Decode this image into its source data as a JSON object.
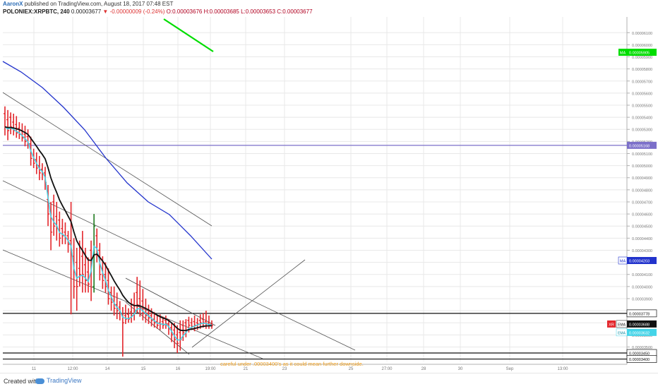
{
  "header": {
    "author": "AaronX",
    "published_text": "published on TradingView.com, August 18, 2017 07:48 EST",
    "symbol": "POLONIEX:XRPBTC, 240",
    "last": "0.00003677",
    "change": "▼ -0.00000009 (-0.24%)",
    "open": "O:0.00003676",
    "high": "H:0.00003685",
    "low": "L:0.00003653",
    "close": "C:0.00003677"
  },
  "footer": {
    "created_with": "Created with",
    "brand": "TradingView"
  },
  "colors": {
    "up": "#1f7a1f",
    "down": "#e3262b",
    "ma_green": "#00dd00",
    "ma_blue": "#2233cc",
    "ema_black": "#111111",
    "ema_cyan": "#44d4e8",
    "horizontal_purple": "#7b6fc9",
    "note": "#f0a020",
    "grid": "#e8e8e8"
  },
  "chart_data": {
    "type": "candlestick",
    "y_scale": "price (BTC)",
    "ylim": [
      3.38e-05,
      6.23e-05
    ],
    "y_ticks": [
      "0.00006100",
      "0.00006000",
      "0.00005900",
      "0.00005800",
      "0.00005700",
      "0.00005600",
      "0.00005500",
      "0.00005400",
      "0.00005300",
      "0.00005200",
      "0.00005100",
      "0.00005000",
      "0.00004900",
      "0.00004800",
      "0.00004700",
      "0.00004600",
      "0.00004500",
      "0.00004400",
      "0.00004300",
      "0.00004200",
      "0.00004100",
      "0.00004000",
      "0.00003900",
      "0.00003800",
      "0.00003700",
      "0.00003600",
      "0.00003500",
      "0.00003400"
    ],
    "x_ticks": [
      "11",
      "12:00",
      "14",
      "15",
      "16",
      "19:00",
      "21",
      "23",
      "25",
      "27:00",
      "28",
      "30",
      "Sep",
      "13:00"
    ],
    "grid": true,
    "candles": [
      {
        "o": 5.43e-05,
        "h": 5.49e-05,
        "l": 5.25e-05,
        "c": 5.32e-05,
        "d": "down"
      },
      {
        "o": 5.38e-05,
        "h": 5.46e-05,
        "l": 5.21e-05,
        "c": 5.29e-05,
        "d": "down"
      },
      {
        "o": 5.4e-05,
        "h": 5.44e-05,
        "l": 5.26e-05,
        "c": 5.32e-05,
        "d": "down"
      },
      {
        "o": 5.36e-05,
        "h": 5.43e-05,
        "l": 5.25e-05,
        "c": 5.29e-05,
        "d": "down"
      },
      {
        "o": 5.34e-05,
        "h": 5.41e-05,
        "l": 5.23e-05,
        "c": 5.27e-05,
        "d": "down"
      },
      {
        "o": 5.31e-05,
        "h": 5.36e-05,
        "l": 5.22e-05,
        "c": 5.26e-05,
        "d": "down"
      },
      {
        "o": 5.29e-05,
        "h": 5.35e-05,
        "l": 5.2e-05,
        "c": 5.23e-05,
        "d": "down"
      },
      {
        "o": 5.26e-05,
        "h": 5.33e-05,
        "l": 5.16e-05,
        "c": 5.2e-05,
        "d": "down"
      },
      {
        "o": 5.24e-05,
        "h": 5.3e-05,
        "l": 5.14e-05,
        "c": 5.18e-05,
        "d": "down"
      },
      {
        "o": 5.18e-05,
        "h": 5.24e-05,
        "l": 5e-05,
        "c": 5.06e-05,
        "d": "down"
      },
      {
        "o": 5.08e-05,
        "h": 5.14e-05,
        "l": 4.98e-05,
        "c": 5.02e-05,
        "d": "down"
      },
      {
        "o": 5.05e-05,
        "h": 5.11e-05,
        "l": 4.93e-05,
        "c": 4.98e-05,
        "d": "down"
      },
      {
        "o": 5e-05,
        "h": 5.08e-05,
        "l": 4.88e-05,
        "c": 4.94e-05,
        "d": "down"
      },
      {
        "o": 4.97e-05,
        "h": 5.02e-05,
        "l": 4.88e-05,
        "c": 4.93e-05,
        "d": "down"
      },
      {
        "o": 4.94e-05,
        "h": 4.99e-05,
        "l": 4.8e-05,
        "c": 4.86e-05,
        "d": "down"
      },
      {
        "o": 4.72e-05,
        "h": 4.84e-05,
        "l": 4.5e-05,
        "c": 4.6e-05,
        "d": "down"
      },
      {
        "o": 4.62e-05,
        "h": 4.7e-05,
        "l": 4.3e-05,
        "c": 4.45e-05,
        "d": "down"
      },
      {
        "o": 4.7e-05,
        "h": 4.76e-05,
        "l": 4.42e-05,
        "c": 4.5e-05,
        "d": "down"
      },
      {
        "o": 4.58e-05,
        "h": 4.7e-05,
        "l": 4.38e-05,
        "c": 4.48e-05,
        "d": "down"
      },
      {
        "o": 4.55e-05,
        "h": 4.62e-05,
        "l": 4.33e-05,
        "c": 4.4e-05,
        "d": "down"
      },
      {
        "o": 4.48e-05,
        "h": 4.56e-05,
        "l": 4.35e-05,
        "c": 4.42e-05,
        "d": "down"
      },
      {
        "o": 4.45e-05,
        "h": 4.53e-05,
        "l": 4.35e-05,
        "c": 4.4e-05,
        "d": "down"
      },
      {
        "o": 4.42e-05,
        "h": 4.46e-05,
        "l": 4.28e-05,
        "c": 4.35e-05,
        "d": "down"
      },
      {
        "o": 4.38e-05,
        "h": 4.7e-05,
        "l": 3.77e-05,
        "c": 4.3e-05,
        "d": "down"
      },
      {
        "o": 4.25e-05,
        "h": 4.4e-05,
        "l": 3.9e-05,
        "c": 4e-05,
        "d": "down"
      },
      {
        "o": 4.2e-05,
        "h": 4.32e-05,
        "l": 3.8e-05,
        "c": 4e-05,
        "d": "down"
      },
      {
        "o": 4.15e-05,
        "h": 4.38e-05,
        "l": 4e-05,
        "c": 4.1e-05,
        "d": "down"
      },
      {
        "o": 4.25e-05,
        "h": 4.46e-05,
        "l": 3.95e-05,
        "c": 4.1e-05,
        "d": "down"
      },
      {
        "o": 4.18e-05,
        "h": 4.32e-05,
        "l": 3.95e-05,
        "c": 4.05e-05,
        "d": "down"
      },
      {
        "o": 4.12e-05,
        "h": 4.24e-05,
        "l": 3.95e-05,
        "c": 4.02e-05,
        "d": "down"
      },
      {
        "o": 4.3e-05,
        "h": 4.38e-05,
        "l": 3.88e-05,
        "c": 4.2e-05,
        "d": "down"
      },
      {
        "o": 4e-05,
        "h": 4.6e-05,
        "l": 3.95e-05,
        "c": 4.5e-05,
        "d": "up"
      },
      {
        "o": 4.42e-05,
        "h": 4.48e-05,
        "l": 4.2e-05,
        "c": 4.3e-05,
        "d": "down"
      },
      {
        "o": 4.3e-05,
        "h": 4.36e-05,
        "l": 4.05e-05,
        "c": 4.1e-05,
        "d": "down"
      },
      {
        "o": 4.15e-05,
        "h": 4.25e-05,
        "l": 3.98e-05,
        "c": 4.05e-05,
        "d": "down"
      },
      {
        "o": 4.1e-05,
        "h": 4.2e-05,
        "l": 3.95e-05,
        "c": 4e-05,
        "d": "down"
      },
      {
        "o": 4.05e-05,
        "h": 4.15e-05,
        "l": 3.85e-05,
        "c": 3.9e-05,
        "d": "down"
      },
      {
        "o": 3.95e-05,
        "h": 4e-05,
        "l": 3.8e-05,
        "c": 3.87e-05,
        "d": "down"
      },
      {
        "o": 3.92e-05,
        "h": 4e-05,
        "l": 3.76e-05,
        "c": 3.82e-05,
        "d": "down"
      },
      {
        "o": 3.85e-05,
        "h": 3.95e-05,
        "l": 3.73e-05,
        "c": 3.8e-05,
        "d": "down"
      },
      {
        "o": 3.83e-05,
        "h": 3.88e-05,
        "l": 3.72e-05,
        "c": 3.78e-05,
        "d": "down"
      },
      {
        "o": 3.77e-05,
        "h": 3.83e-05,
        "l": 3.42e-05,
        "c": 3.7e-05,
        "d": "down"
      },
      {
        "o": 3.76e-05,
        "h": 3.85e-05,
        "l": 3.69e-05,
        "c": 3.73e-05,
        "d": "down"
      },
      {
        "o": 3.77e-05,
        "h": 3.82e-05,
        "l": 3.7e-05,
        "c": 3.73e-05,
        "d": "down"
      },
      {
        "o": 3.79e-05,
        "h": 3.9e-05,
        "l": 3.7e-05,
        "c": 3.76e-05,
        "d": "down"
      },
      {
        "o": 3.85e-05,
        "h": 3.95e-05,
        "l": 3.72e-05,
        "c": 3.79e-05,
        "d": "down"
      },
      {
        "o": 3.95e-05,
        "h": 4.08e-05,
        "l": 3.78e-05,
        "c": 3.85e-05,
        "d": "down"
      },
      {
        "o": 3.9e-05,
        "h": 4.05e-05,
        "l": 3.75e-05,
        "c": 3.82e-05,
        "d": "down"
      },
      {
        "o": 3.88e-05,
        "h": 3.98e-05,
        "l": 3.72e-05,
        "c": 3.78e-05,
        "d": "down"
      },
      {
        "o": 3.82e-05,
        "h": 3.9e-05,
        "l": 3.7e-05,
        "c": 3.76e-05,
        "d": "down"
      },
      {
        "o": 3.78e-05,
        "h": 3.85e-05,
        "l": 3.69e-05,
        "c": 3.74e-05,
        "d": "down"
      },
      {
        "o": 3.76e-05,
        "h": 3.82e-05,
        "l": 3.67e-05,
        "c": 3.72e-05,
        "d": "down"
      },
      {
        "o": 3.73e-05,
        "h": 3.79e-05,
        "l": 3.66e-05,
        "c": 3.7e-05,
        "d": "down"
      },
      {
        "o": 3.71e-05,
        "h": 3.76e-05,
        "l": 3.65e-05,
        "c": 3.68e-05,
        "d": "down"
      },
      {
        "o": 3.7e-05,
        "h": 3.77e-05,
        "l": 3.64e-05,
        "c": 3.69e-05,
        "d": "down"
      },
      {
        "o": 3.71e-05,
        "h": 3.75e-05,
        "l": 3.65e-05,
        "c": 3.68e-05,
        "d": "down"
      },
      {
        "o": 3.72e-05,
        "h": 3.76e-05,
        "l": 3.65e-05,
        "c": 3.69e-05,
        "d": "down"
      },
      {
        "o": 3.69e-05,
        "h": 3.73e-05,
        "l": 3.6e-05,
        "c": 3.65e-05,
        "d": "down"
      },
      {
        "o": 3.66e-05,
        "h": 3.7e-05,
        "l": 3.54e-05,
        "c": 3.6e-05,
        "d": "down"
      },
      {
        "o": 3.64e-05,
        "h": 3.7e-05,
        "l": 3.49e-05,
        "c": 3.56e-05,
        "d": "down"
      },
      {
        "o": 3.6e-05,
        "h": 3.68e-05,
        "l": 3.45e-05,
        "c": 3.53e-05,
        "d": "down"
      },
      {
        "o": 3.62e-05,
        "h": 3.72e-05,
        "l": 3.47e-05,
        "c": 3.56e-05,
        "d": "down"
      },
      {
        "o": 3.68e-05,
        "h": 3.72e-05,
        "l": 3.55e-05,
        "c": 3.62e-05,
        "d": "down"
      },
      {
        "o": 3.7e-05,
        "h": 3.73e-05,
        "l": 3.58e-05,
        "c": 3.64e-05,
        "d": "down"
      },
      {
        "o": 3.72e-05,
        "h": 3.75e-05,
        "l": 3.62e-05,
        "c": 3.68e-05,
        "d": "down"
      },
      {
        "o": 3.7e-05,
        "h": 3.74e-05,
        "l": 3.64e-05,
        "c": 3.67e-05,
        "d": "down"
      },
      {
        "o": 3.71e-05,
        "h": 3.76e-05,
        "l": 3.63e-05,
        "c": 3.68e-05,
        "d": "down"
      },
      {
        "o": 3.7e-05,
        "h": 3.74e-05,
        "l": 3.64e-05,
        "c": 3.69e-05,
        "d": "down"
      },
      {
        "o": 3.72e-05,
        "h": 3.77e-05,
        "l": 3.65e-05,
        "c": 3.7e-05,
        "d": "down"
      },
      {
        "o": 3.73e-05,
        "h": 3.78e-05,
        "l": 3.66e-05,
        "c": 3.7e-05,
        "d": "down"
      },
      {
        "o": 3.71e-05,
        "h": 3.8e-05,
        "l": 3.65e-05,
        "c": 3.69e-05,
        "d": "down"
      },
      {
        "o": 3.7e-05,
        "h": 3.76e-05,
        "l": 3.65e-05,
        "c": 3.68e-05,
        "d": "down"
      },
      {
        "o": 3.69e-05,
        "h": 3.72e-05,
        "l": 3.65e-05,
        "c": 3.677e-05,
        "d": "down"
      }
    ],
    "indicators": [
      {
        "name": "MA",
        "color": "#00dd00",
        "points": [
          [
            0.25,
            6.25e-05
          ],
          [
            0.3,
            5.95e-05
          ]
        ],
        "badge": "0.00005905"
      },
      {
        "name": "MA",
        "color": "#2233cc",
        "badge": "0.00004203"
      },
      {
        "name": "EMA",
        "color": "#111111",
        "badge": "0.00003688"
      },
      {
        "name": "EMA",
        "color": "#44d4e8",
        "badge": "0.00003632"
      }
    ],
    "horizontal_lines": [
      {
        "price": 5.168e-05,
        "color": "#7b6fc9",
        "label": "0.00005168"
      },
      {
        "price": 3.778e-05,
        "color": "#111111",
        "label": "0.00003778"
      },
      {
        "price": 3.45e-05,
        "color": "#111111",
        "label": "0.00003450"
      },
      {
        "price": 3.4e-05,
        "color": "#111111",
        "label": "0.00003400"
      }
    ],
    "price_badges": [
      {
        "text": "XR",
        "color": "#e3262b"
      },
      {
        "text": "EMA",
        "label": "0.00003688"
      },
      {
        "text": "EMA",
        "label": "0.00003632"
      }
    ],
    "annotation": "careful under .00003400's as it could mean further downside."
  }
}
